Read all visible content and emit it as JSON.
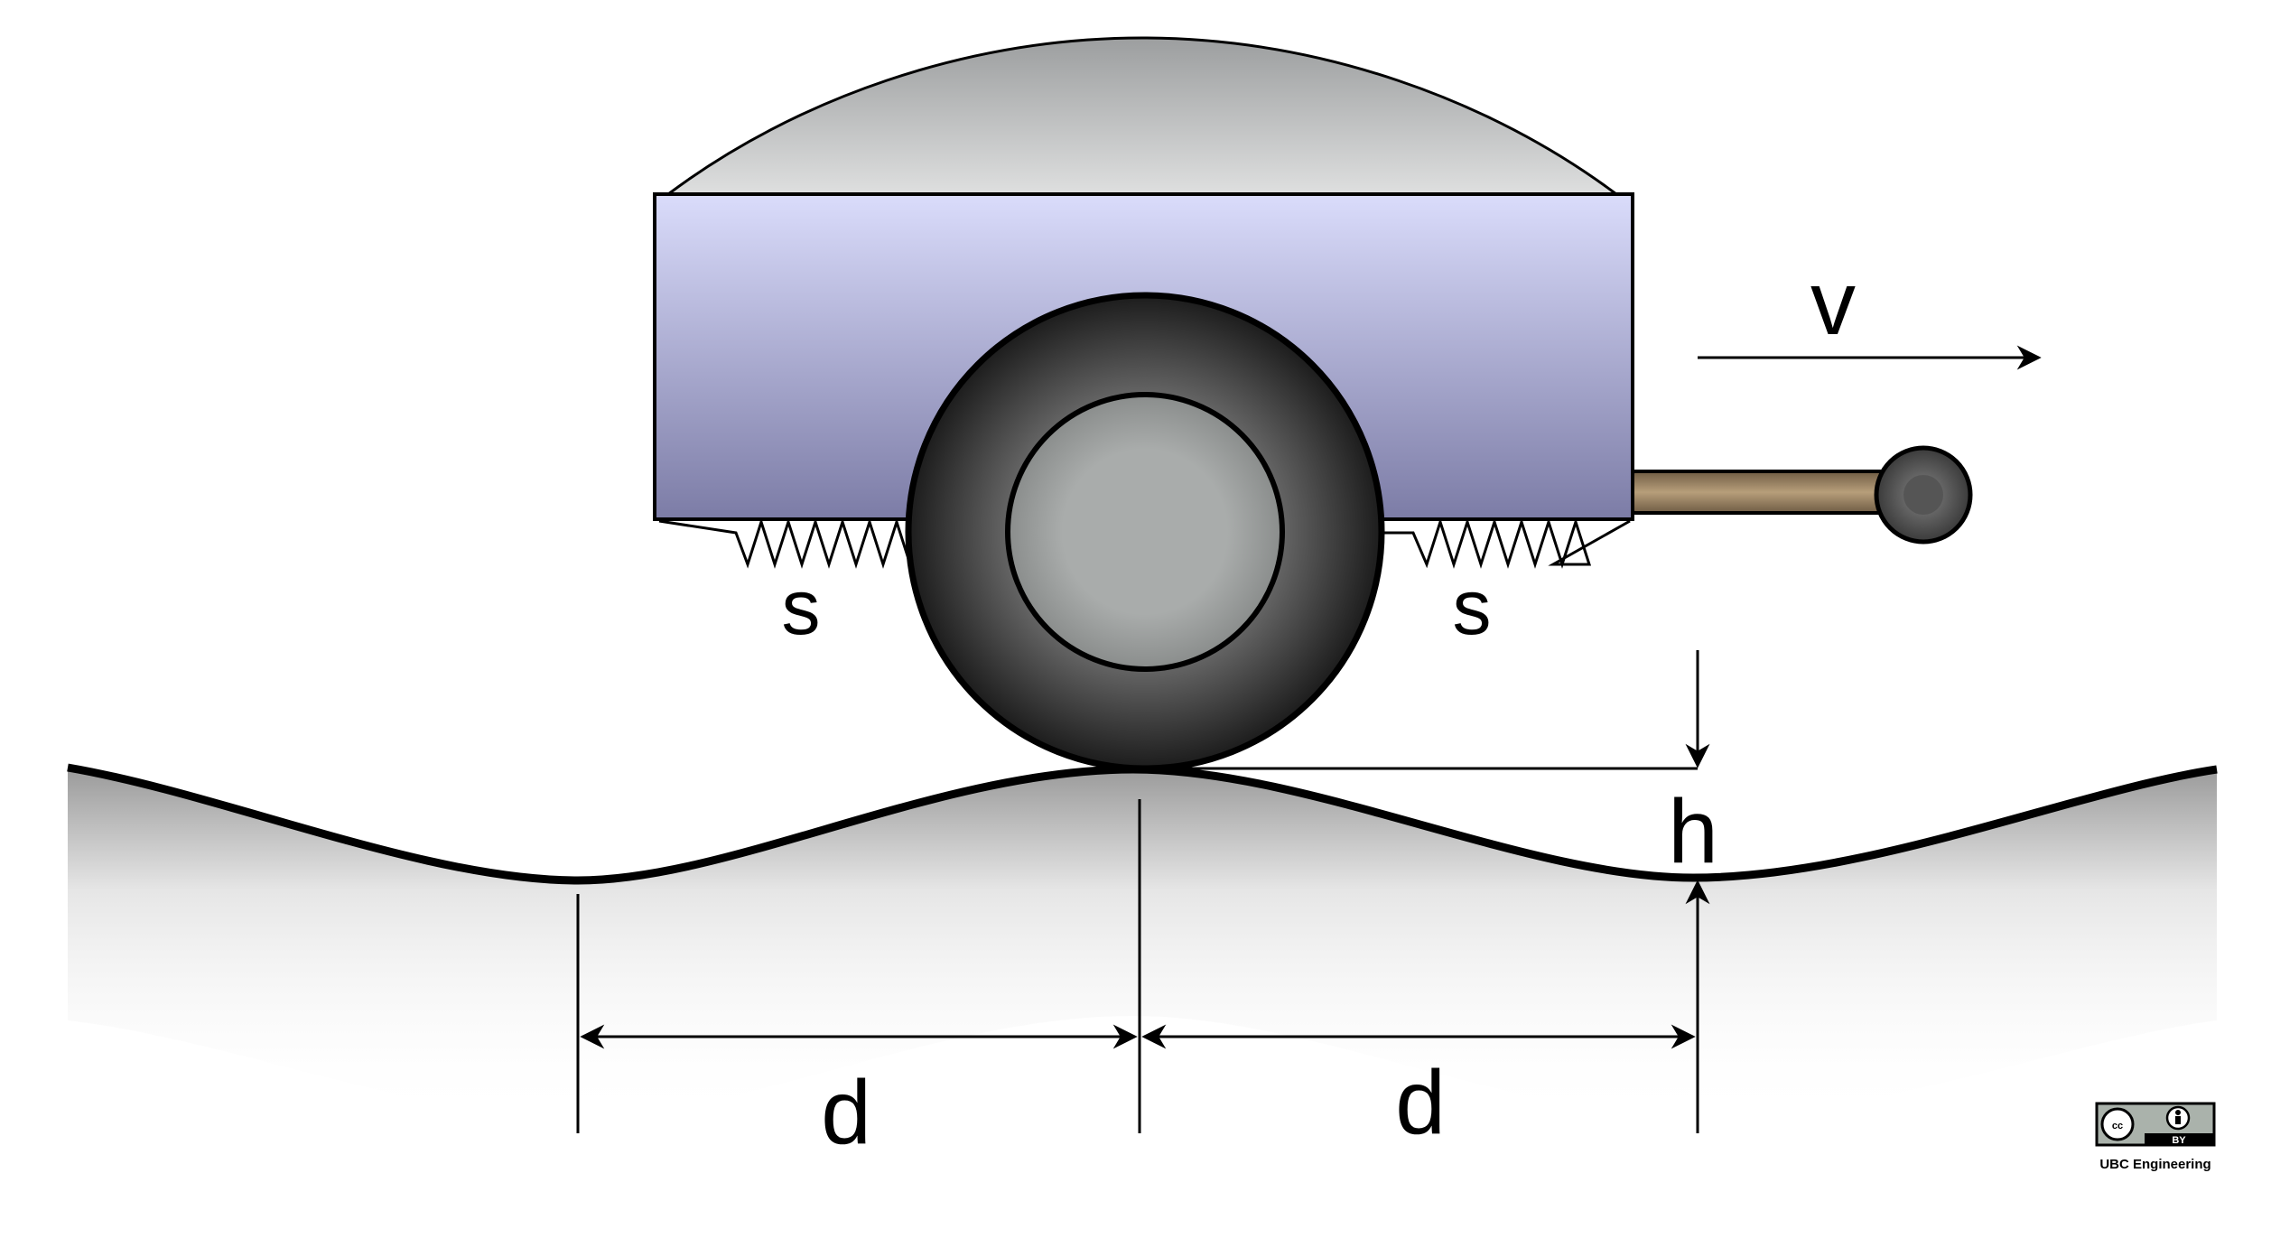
{
  "labels": {
    "velocity": "v",
    "spring_left": "s",
    "spring_right": "s",
    "height": "h",
    "distance_left": "d",
    "distance_right": "d"
  },
  "license": {
    "badge_cc": "cc",
    "badge_by": "BY",
    "credit": "UBC Engineering"
  },
  "colors": {
    "trailer_body_top": "#d9dcfa",
    "trailer_body_bottom": "#7f7fa8",
    "canopy_top": "#9a9c9e",
    "canopy_bottom": "#dcdddd",
    "tire_outer": "#1e1e1e",
    "tire_inner": "#5a5a5a",
    "hub": "#a7aaa9",
    "hitch_bar": "#9a8260",
    "ground_shadow": "#8a8a8a"
  }
}
